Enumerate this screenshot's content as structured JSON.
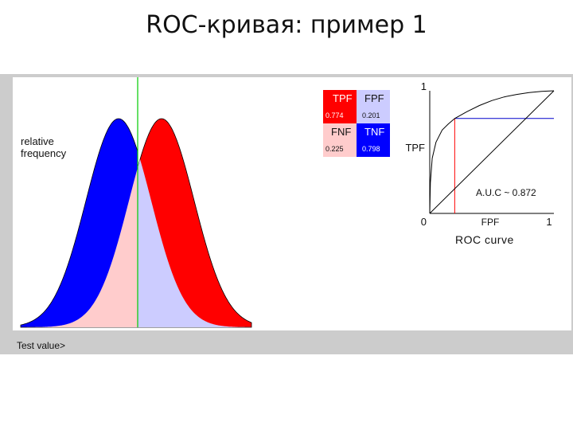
{
  "page_title": "ROC-кривая: пример 1",
  "distribution_plot": {
    "y_label_line1": "relative",
    "y_label_line2": "frequency",
    "x_label": "Test value>"
  },
  "confusion_table": {
    "tpf_label": "TPF",
    "tpf_value": "0.774",
    "fpf_label": "FPF",
    "fpf_value": "0.201",
    "fnf_label": "FNF",
    "fnf_value": "0.225",
    "tnf_label": "TNF",
    "tnf_value": "0.798"
  },
  "chart_data": [
    {
      "type": "area",
      "title": "",
      "xlabel": "Test value>",
      "ylabel": "relative frequency",
      "series": [
        {
          "name": "",
          "color": "#0000ff",
          "values": "normal distribution, left (negative)"
        },
        {
          "name": "",
          "color": "#ff0000",
          "values": "normal distribution, right (positive)"
        }
      ],
      "threshold_color": "#00cc00",
      "region_colors": {
        "tp": "#ff0000",
        "fp": "#ffcccc",
        "fn": "#ccccff",
        "tn": "#0000ff"
      }
    },
    {
      "type": "line",
      "title": "ROC curve",
      "xlabel": "FPF",
      "ylabel": "TPF",
      "xlim": [
        0,
        1
      ],
      "ylim": [
        0,
        1
      ],
      "tick_labels": {
        "origin": "0",
        "x_max": "1",
        "y_max": "1"
      },
      "annotation": "A.U.C ~ 0.872",
      "operating_point": {
        "x": 0.201,
        "y": 0.774
      },
      "series": [
        {
          "name": "",
          "x": [
            0,
            0.005,
            0.02,
            0.05,
            0.1,
            0.15,
            0.201,
            0.3,
            0.4,
            0.5,
            0.6,
            0.7,
            0.8,
            0.9,
            1.0
          ],
          "y": [
            0,
            0.25,
            0.45,
            0.58,
            0.68,
            0.73,
            0.774,
            0.83,
            0.88,
            0.92,
            0.95,
            0.97,
            0.985,
            0.995,
            1.0
          ]
        },
        {
          "name": "",
          "x": [
            0,
            1
          ],
          "y": [
            0,
            1
          ]
        }
      ]
    }
  ]
}
